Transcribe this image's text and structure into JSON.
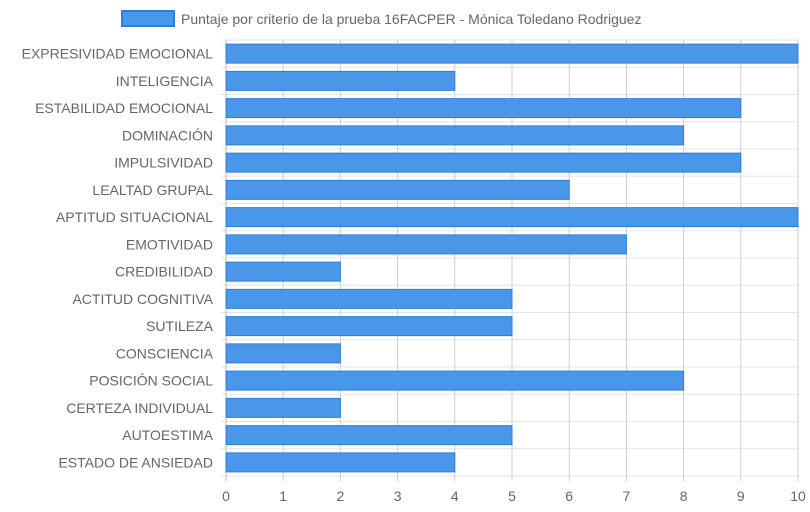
{
  "chart_data": {
    "type": "bar",
    "orientation": "horizontal",
    "categories": [
      "EXPRESIVIDAD EMOCIONAL",
      "INTELIGENCIA",
      "ESTABILIDAD EMOCIONAL",
      "DOMINACIÓN",
      "IMPULSIVIDAD",
      "LEALTAD GRUPAL",
      "APTITUD SITUACIONAL",
      "EMOTIVIDAD",
      "CREDIBILIDAD",
      "ACTITUD COGNITIVA",
      "SUTILEZA",
      "CONSCIENCIA",
      "POSICIÓN SOCIAL",
      "CERTEZA INDIVIDUAL",
      "AUTOESTIMA",
      "ESTADO DE ANSIEDAD"
    ],
    "series": [
      {
        "name": "Puntaje por criterio de la prueba 16FACPER - Mónica Toledano Rodriguez",
        "values": [
          10,
          4,
          9,
          8,
          9,
          6,
          10,
          7,
          2,
          5,
          5,
          2,
          8,
          2,
          5,
          4
        ]
      }
    ],
    "xlim": [
      0,
      10
    ],
    "xticks": [
      "0",
      "1",
      "2",
      "3",
      "4",
      "5",
      "6",
      "7",
      "8",
      "9",
      "10"
    ],
    "grid": true,
    "legend_position": "top",
    "colors": {
      "bar_fill": "#4a97ea",
      "bar_stroke": "#2f7fd8",
      "grid": "#e5e5e5",
      "text": "#666666"
    }
  }
}
